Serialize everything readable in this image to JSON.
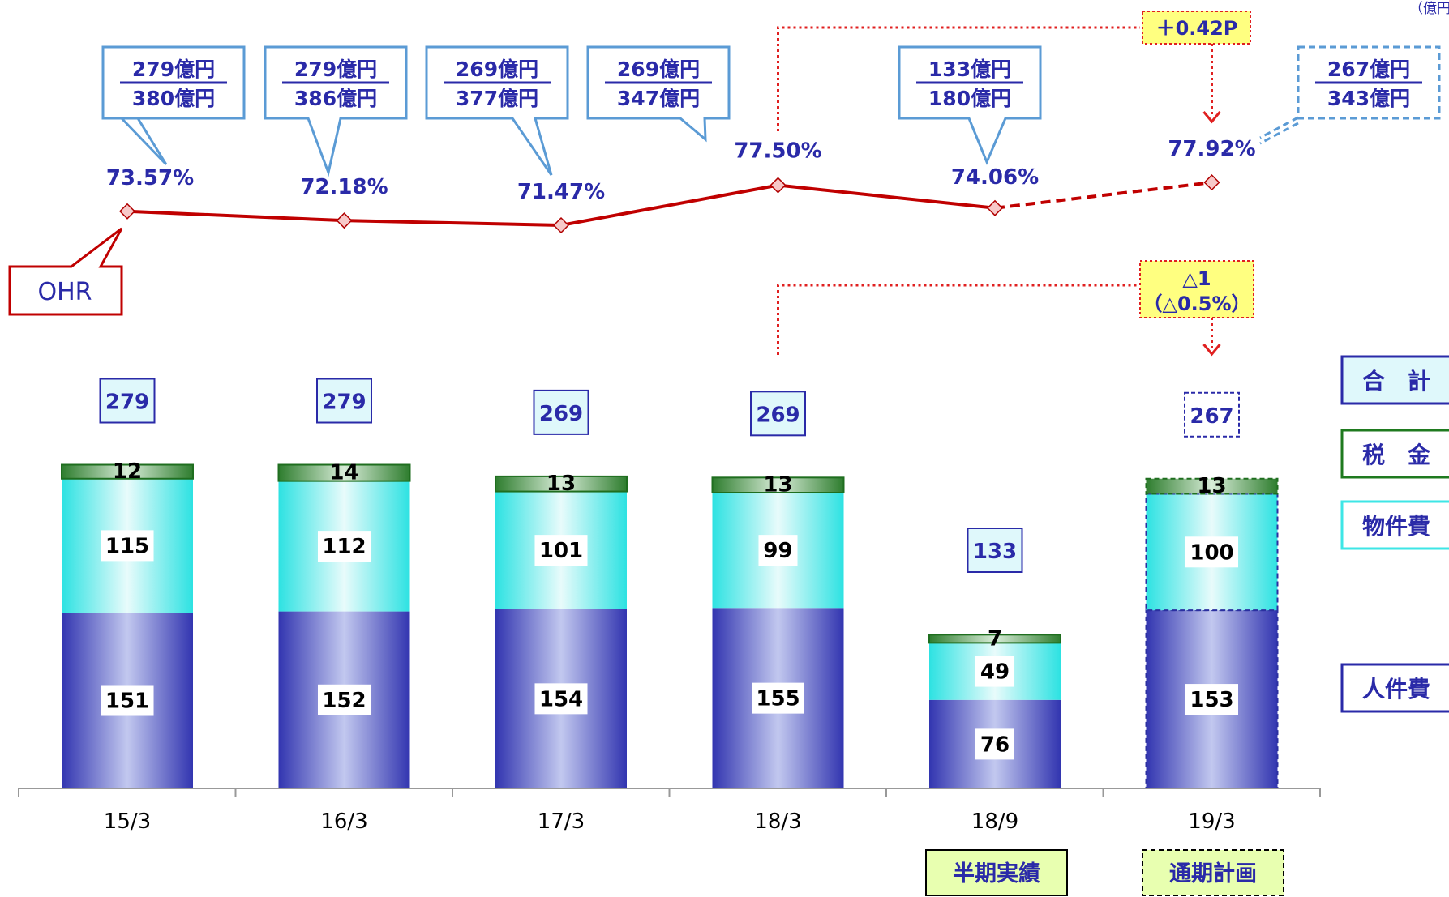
{
  "unit_label": "（億円",
  "chart_data": {
    "type": "bar",
    "subtype": "stacked-bar-with-line",
    "categories": [
      "15/3",
      "16/3",
      "17/3",
      "18/3",
      "18/9",
      "19/3"
    ],
    "series": [
      {
        "name": "人件費",
        "values": [
          151,
          152,
          154,
          155,
          76,
          153
        ],
        "color": "#3b3fb8"
      },
      {
        "name": "物件費",
        "values": [
          115,
          112,
          101,
          99,
          49,
          100
        ],
        "color": "#3ee6e6"
      },
      {
        "name": "税　金",
        "values": [
          12,
          14,
          13,
          13,
          7,
          13
        ],
        "color": "#2e8b2e"
      }
    ],
    "totals": [
      "279",
      "279",
      "269",
      "269",
      "133",
      "267"
    ],
    "total_series_name": "合　計",
    "line": {
      "name": "OHR",
      "values": [
        73.57,
        72.18,
        71.47,
        77.5,
        74.06,
        77.92
      ],
      "labels": [
        "73.57%",
        "72.18%",
        "71.47%",
        "77.50%",
        "74.06%",
        "77.92%"
      ],
      "color": "#c00000"
    },
    "callouts": [
      {
        "numerator": "279億円",
        "denominator": "380億円"
      },
      {
        "numerator": "279億円",
        "denominator": "386億円"
      },
      {
        "numerator": "269億円",
        "denominator": "377億円"
      },
      {
        "numerator": "269億円",
        "denominator": "347億円"
      },
      {
        "numerator": "133億円",
        "denominator": "180億円"
      },
      {
        "numerator": "267億円",
        "denominator": "343億円"
      }
    ],
    "annotations": {
      "ohr_change": "＋0.42P",
      "total_change_line1": "△1",
      "total_change_line2": "（△0.5%）"
    },
    "period_tags": {
      "half_year": "半期実績",
      "full_year": "通期計画"
    },
    "y_scale_max": 300,
    "ohr_scale": [
      70,
      78
    ],
    "forecast_category_index": 5,
    "grid": false,
    "legend_position": "right"
  }
}
